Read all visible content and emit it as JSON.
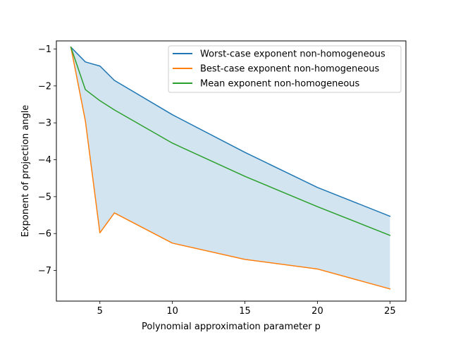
{
  "chart_data": {
    "type": "line",
    "title": "",
    "xlabel": "Polynomial approximation parameter p",
    "ylabel": "Exponent of projection angle",
    "xlim": [
      2.0,
      26.1
    ],
    "ylim": [
      -7.83,
      -0.78
    ],
    "xticks": [
      5,
      10,
      15,
      20,
      25
    ],
    "yticks": [
      -1,
      -2,
      -3,
      -4,
      -5,
      -6,
      -7
    ],
    "xtick_labels": [
      "5",
      "10",
      "15",
      "20",
      "25"
    ],
    "ytick_labels": [
      "−1",
      "−2",
      "−3",
      "−4",
      "−5",
      "−6",
      "−7"
    ],
    "grid": false,
    "legend_position": "upper right",
    "series": [
      {
        "name": "Worst-case exponent non-homogeneous",
        "color": "#1f77b4",
        "x": [
          3,
          4,
          5,
          6,
          10,
          15,
          20,
          25
        ],
        "y": [
          -0.95,
          -1.35,
          -1.46,
          -1.85,
          -2.78,
          -3.8,
          -4.75,
          -5.53
        ]
      },
      {
        "name": "Best-case exponent non-homogeneous",
        "color": "#ff7f0e",
        "x": [
          3,
          4,
          5,
          6,
          10,
          15,
          20,
          25
        ],
        "y": [
          -0.95,
          -2.95,
          -5.98,
          -5.44,
          -6.26,
          -6.7,
          -6.96,
          -7.5
        ]
      },
      {
        "name": "Mean exponent non-homogeneous",
        "color": "#2ca02c",
        "x": [
          3,
          4,
          5,
          6,
          10,
          15,
          20,
          25
        ],
        "y": [
          -0.95,
          -2.1,
          -2.4,
          -2.65,
          -3.55,
          -4.45,
          -5.27,
          -6.05
        ]
      }
    ],
    "fill_between": {
      "color": "#1f77b4",
      "alpha": 0.2,
      "upper_series": 0,
      "lower_series": 1
    }
  }
}
